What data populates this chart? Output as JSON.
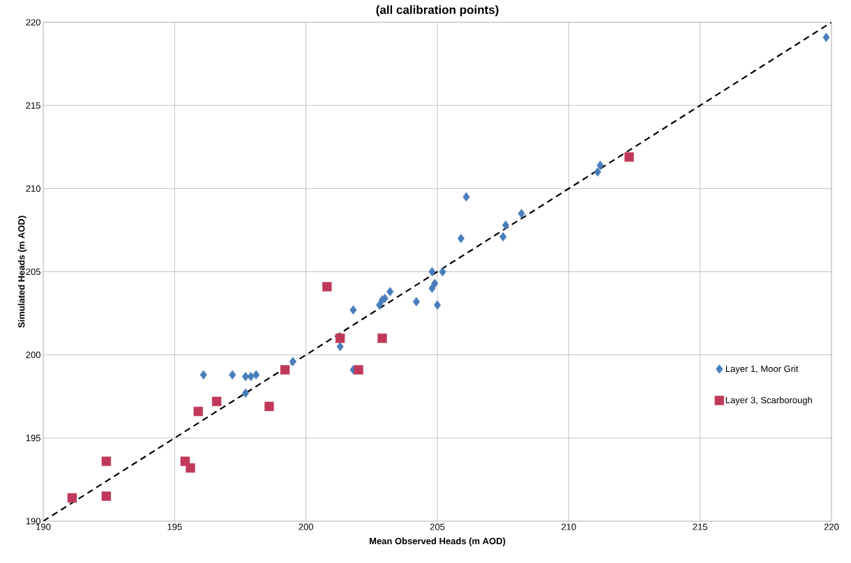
{
  "chart_data": {
    "type": "scatter",
    "title": "(all calibration points)",
    "xlabel": "Mean Observed Heads (m AOD)",
    "ylabel": "Simulated Heads (m AOD)",
    "xlim": [
      190,
      220
    ],
    "ylim": [
      190,
      220
    ],
    "xticks": [
      190,
      195,
      200,
      205,
      210,
      215,
      220
    ],
    "yticks": [
      190,
      195,
      200,
      205,
      210,
      215,
      220
    ],
    "grid": true,
    "legend": "right",
    "series": [
      {
        "name": "Layer 1, Moor Grit",
        "color": "#4a7ebb",
        "marker": "diamond",
        "x": [
          196.1,
          197.2,
          197.7,
          197.9,
          198.1,
          197.7,
          199.5,
          201.3,
          201.8,
          201.8,
          202.9,
          203.0,
          203.2,
          202.8,
          204.2,
          204.8,
          204.9,
          204.8,
          205.0,
          205.2,
          206.1,
          205.9,
          207.5,
          207.6,
          208.2,
          211.1,
          211.2,
          219.8
        ],
        "values": [
          198.8,
          198.8,
          198.7,
          198.7,
          198.8,
          197.7,
          199.6,
          200.5,
          202.7,
          199.1,
          203.3,
          203.4,
          203.8,
          203.0,
          203.2,
          205.0,
          204.3,
          204.0,
          203.0,
          205.0,
          209.5,
          207.0,
          207.1,
          207.8,
          208.5,
          211.0,
          211.4,
          219.1
        ]
      },
      {
        "name": "Layer 3, Scarborough",
        "color": "#c0395a",
        "marker": "square",
        "x": [
          191.1,
          192.4,
          192.4,
          195.4,
          195.6,
          195.9,
          196.6,
          198.6,
          199.2,
          200.8,
          201.3,
          202.9,
          202.0,
          212.3
        ],
        "values": [
          191.4,
          191.5,
          193.6,
          193.6,
          193.2,
          196.6,
          197.2,
          196.9,
          199.1,
          204.1,
          201.0,
          201.0,
          199.1,
          211.9
        ]
      },
      {
        "type": "line",
        "color": "#000000",
        "marker": "none",
        "line_style": "dashed",
        "x": [
          190,
          220
        ],
        "values": [
          190,
          220
        ]
      }
    ]
  }
}
